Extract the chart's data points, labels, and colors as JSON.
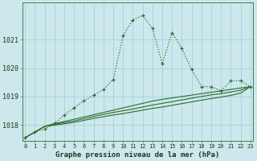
{
  "title": "Graphe pression niveau de la mer (hPa)",
  "background_color": "#cce8ec",
  "grid_color": "#9ecdd4",
  "line_color": "#2d6b2d",
  "x_labels": [
    "0",
    "1",
    "2",
    "3",
    "4",
    "5",
    "6",
    "7",
    "8",
    "9",
    "10",
    "11",
    "12",
    "13",
    "14",
    "15",
    "16",
    "17",
    "18",
    "19",
    "20",
    "21",
    "22",
    "23"
  ],
  "ylim": [
    1017.45,
    1022.3
  ],
  "yticks": [
    1018,
    1019,
    1020,
    1021
  ],
  "series": {
    "main": [
      1017.55,
      1017.75,
      1017.85,
      1018.05,
      1018.35,
      1018.6,
      1018.85,
      1019.05,
      1019.25,
      1019.6,
      1021.15,
      1021.7,
      1021.85,
      1021.4,
      1020.15,
      1021.25,
      1020.7,
      1019.95,
      1019.35,
      1019.35,
      1019.2,
      1019.55,
      1019.55,
      1019.35
    ],
    "line2": [
      1017.55,
      1017.75,
      1017.95,
      1018.05,
      1018.12,
      1018.2,
      1018.28,
      1018.36,
      1018.44,
      1018.52,
      1018.6,
      1018.68,
      1018.76,
      1018.84,
      1018.9,
      1018.95,
      1019.0,
      1019.05,
      1019.1,
      1019.15,
      1019.2,
      1019.25,
      1019.3,
      1019.35
    ],
    "line3": [
      1017.55,
      1017.75,
      1017.95,
      1018.02,
      1018.08,
      1018.14,
      1018.22,
      1018.3,
      1018.37,
      1018.44,
      1018.5,
      1018.56,
      1018.63,
      1018.7,
      1018.76,
      1018.82,
      1018.88,
      1018.94,
      1019.0,
      1019.06,
      1019.1,
      1019.16,
      1019.22,
      1019.35
    ],
    "line4": [
      1017.55,
      1017.75,
      1017.95,
      1017.99,
      1018.04,
      1018.09,
      1018.16,
      1018.23,
      1018.29,
      1018.35,
      1018.4,
      1018.46,
      1018.52,
      1018.58,
      1018.63,
      1018.69,
      1018.75,
      1018.81,
      1018.87,
      1018.93,
      1018.98,
      1019.04,
      1019.12,
      1019.35
    ]
  }
}
